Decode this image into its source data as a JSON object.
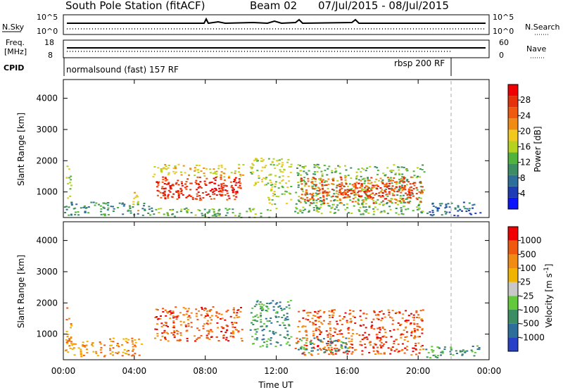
{
  "header": {
    "station": "South Pole Station (fitACF)",
    "beam": "Beam 02",
    "dates": "07/Jul/2015 - 08/Jul/2015"
  },
  "nsky_panel": {
    "left_label": "N.Sky",
    "right_label": "N.Search",
    "left_ticks": [
      "10^5",
      "10^0"
    ],
    "right_ticks": [
      "10^5",
      "10^0"
    ]
  },
  "freq_panel": {
    "left_label_1": "Freq.",
    "left_label_2": "[MHz]",
    "right_label": "Nave",
    "left_ticks": [
      18,
      8
    ],
    "right_ticks": [
      60,
      0
    ]
  },
  "cpid": {
    "label": "CPID",
    "program_1": "normalsound (fast) 157 RF",
    "program_2": "rbsp 200 RF",
    "switch_hour": 22
  },
  "chart_data": [
    {
      "type": "heatmap",
      "name": "power",
      "xlabel": "",
      "ylabel": "Slant Range [km]",
      "xlim": [
        0,
        24
      ],
      "ylim": [
        180,
        4600
      ],
      "yticks": [
        1000,
        2000,
        3000,
        4000
      ],
      "xticks": [
        0,
        4,
        8,
        12,
        16,
        20,
        24
      ],
      "colorbar_label": "Power [dB]",
      "colorbar_ticks": [
        "28",
        "24",
        "20",
        "16",
        "12",
        "8",
        "4"
      ],
      "colorbar_colors": [
        "#0a14ff",
        "#1e3cb4",
        "#2d6e9b",
        "#3c8c64",
        "#50b43c",
        "#b4d21e",
        "#f0c81e",
        "#f08c14",
        "#f05a0f",
        "#e6320a",
        "#f00000"
      ],
      "regions": [
        {
          "x0": 0.0,
          "x1": 5.0,
          "y0": 250,
          "y1": 700,
          "level": 3
        },
        {
          "x0": 0.1,
          "x1": 0.4,
          "y0": 800,
          "y1": 1900,
          "level": 5
        },
        {
          "x0": 3.9,
          "x1": 4.3,
          "y0": 400,
          "y1": 1000,
          "level": 6
        },
        {
          "x0": 5.0,
          "x1": 10.1,
          "y0": 1500,
          "y1": 1900,
          "level": 6
        },
        {
          "x0": 5.2,
          "x1": 10.0,
          "y0": 750,
          "y1": 1500,
          "level": 9
        },
        {
          "x0": 5.5,
          "x1": 9.8,
          "y0": 900,
          "y1": 1300,
          "level": 10
        },
        {
          "x0": 5.0,
          "x1": 12.0,
          "y0": 200,
          "y1": 500,
          "level": 4
        },
        {
          "x0": 10.5,
          "x1": 12.8,
          "y0": 1200,
          "y1": 2100,
          "level": 5
        },
        {
          "x0": 11.5,
          "x1": 12.8,
          "y0": 600,
          "y1": 1200,
          "level": 5
        },
        {
          "x0": 13.0,
          "x1": 20.3,
          "y0": 300,
          "y1": 1900,
          "level": 4
        },
        {
          "x0": 13.3,
          "x1": 20.2,
          "y0": 650,
          "y1": 1500,
          "level": 8
        },
        {
          "x0": 15.5,
          "x1": 20.1,
          "y0": 800,
          "y1": 1300,
          "level": 9
        },
        {
          "x0": 20.4,
          "x1": 23.5,
          "y0": 250,
          "y1": 700,
          "level": 2
        }
      ]
    },
    {
      "type": "heatmap",
      "name": "velocity",
      "xlabel": "Time UT",
      "ylabel": "Slant Range [km]",
      "xlim": [
        0,
        24
      ],
      "ylim": [
        180,
        4600
      ],
      "yticks": [
        1000,
        2000,
        3000,
        4000
      ],
      "xticks": [
        0,
        4,
        8,
        12,
        16,
        20,
        24
      ],
      "xtick_labels": [
        "00:00",
        "04:00",
        "08:00",
        "12:00",
        "16:00",
        "20:00",
        "00:00"
      ],
      "colorbar_label": "Velocity [m s^-1]",
      "colorbar_ticks": [
        "1000",
        "500",
        "100",
        "25",
        "-25",
        "-100",
        "-500",
        "-1000"
      ],
      "colorbar_colors": [
        "#2840c8",
        "#2d6e9b",
        "#3c8c64",
        "#64c83c",
        "#c8c8c8",
        "#f0b400",
        "#f08c14",
        "#f05a0f",
        "#f00000"
      ],
      "regions": [
        {
          "x0": 0.0,
          "x1": 4.4,
          "y0": 300,
          "y1": 900,
          "level": 6
        },
        {
          "x0": 0.1,
          "x1": 0.4,
          "y0": 800,
          "y1": 1900,
          "level": 6
        },
        {
          "x0": 5.0,
          "x1": 10.1,
          "y0": 800,
          "y1": 1900,
          "level": 7
        },
        {
          "x0": 10.5,
          "x1": 12.8,
          "y0": 600,
          "y1": 2100,
          "level": 2
        },
        {
          "x0": 13.0,
          "x1": 20.3,
          "y0": 350,
          "y1": 1800,
          "level": 7
        },
        {
          "x0": 13.0,
          "x1": 16.0,
          "y0": 400,
          "y1": 900,
          "level": 2
        },
        {
          "x0": 20.4,
          "x1": 23.5,
          "y0": 250,
          "y1": 650,
          "level": 2
        }
      ]
    }
  ],
  "xaxis": {
    "label": "Time UT",
    "tick_labels": [
      "00:00",
      "04:00",
      "08:00",
      "12:00",
      "16:00",
      "20:00",
      "00:00"
    ]
  }
}
